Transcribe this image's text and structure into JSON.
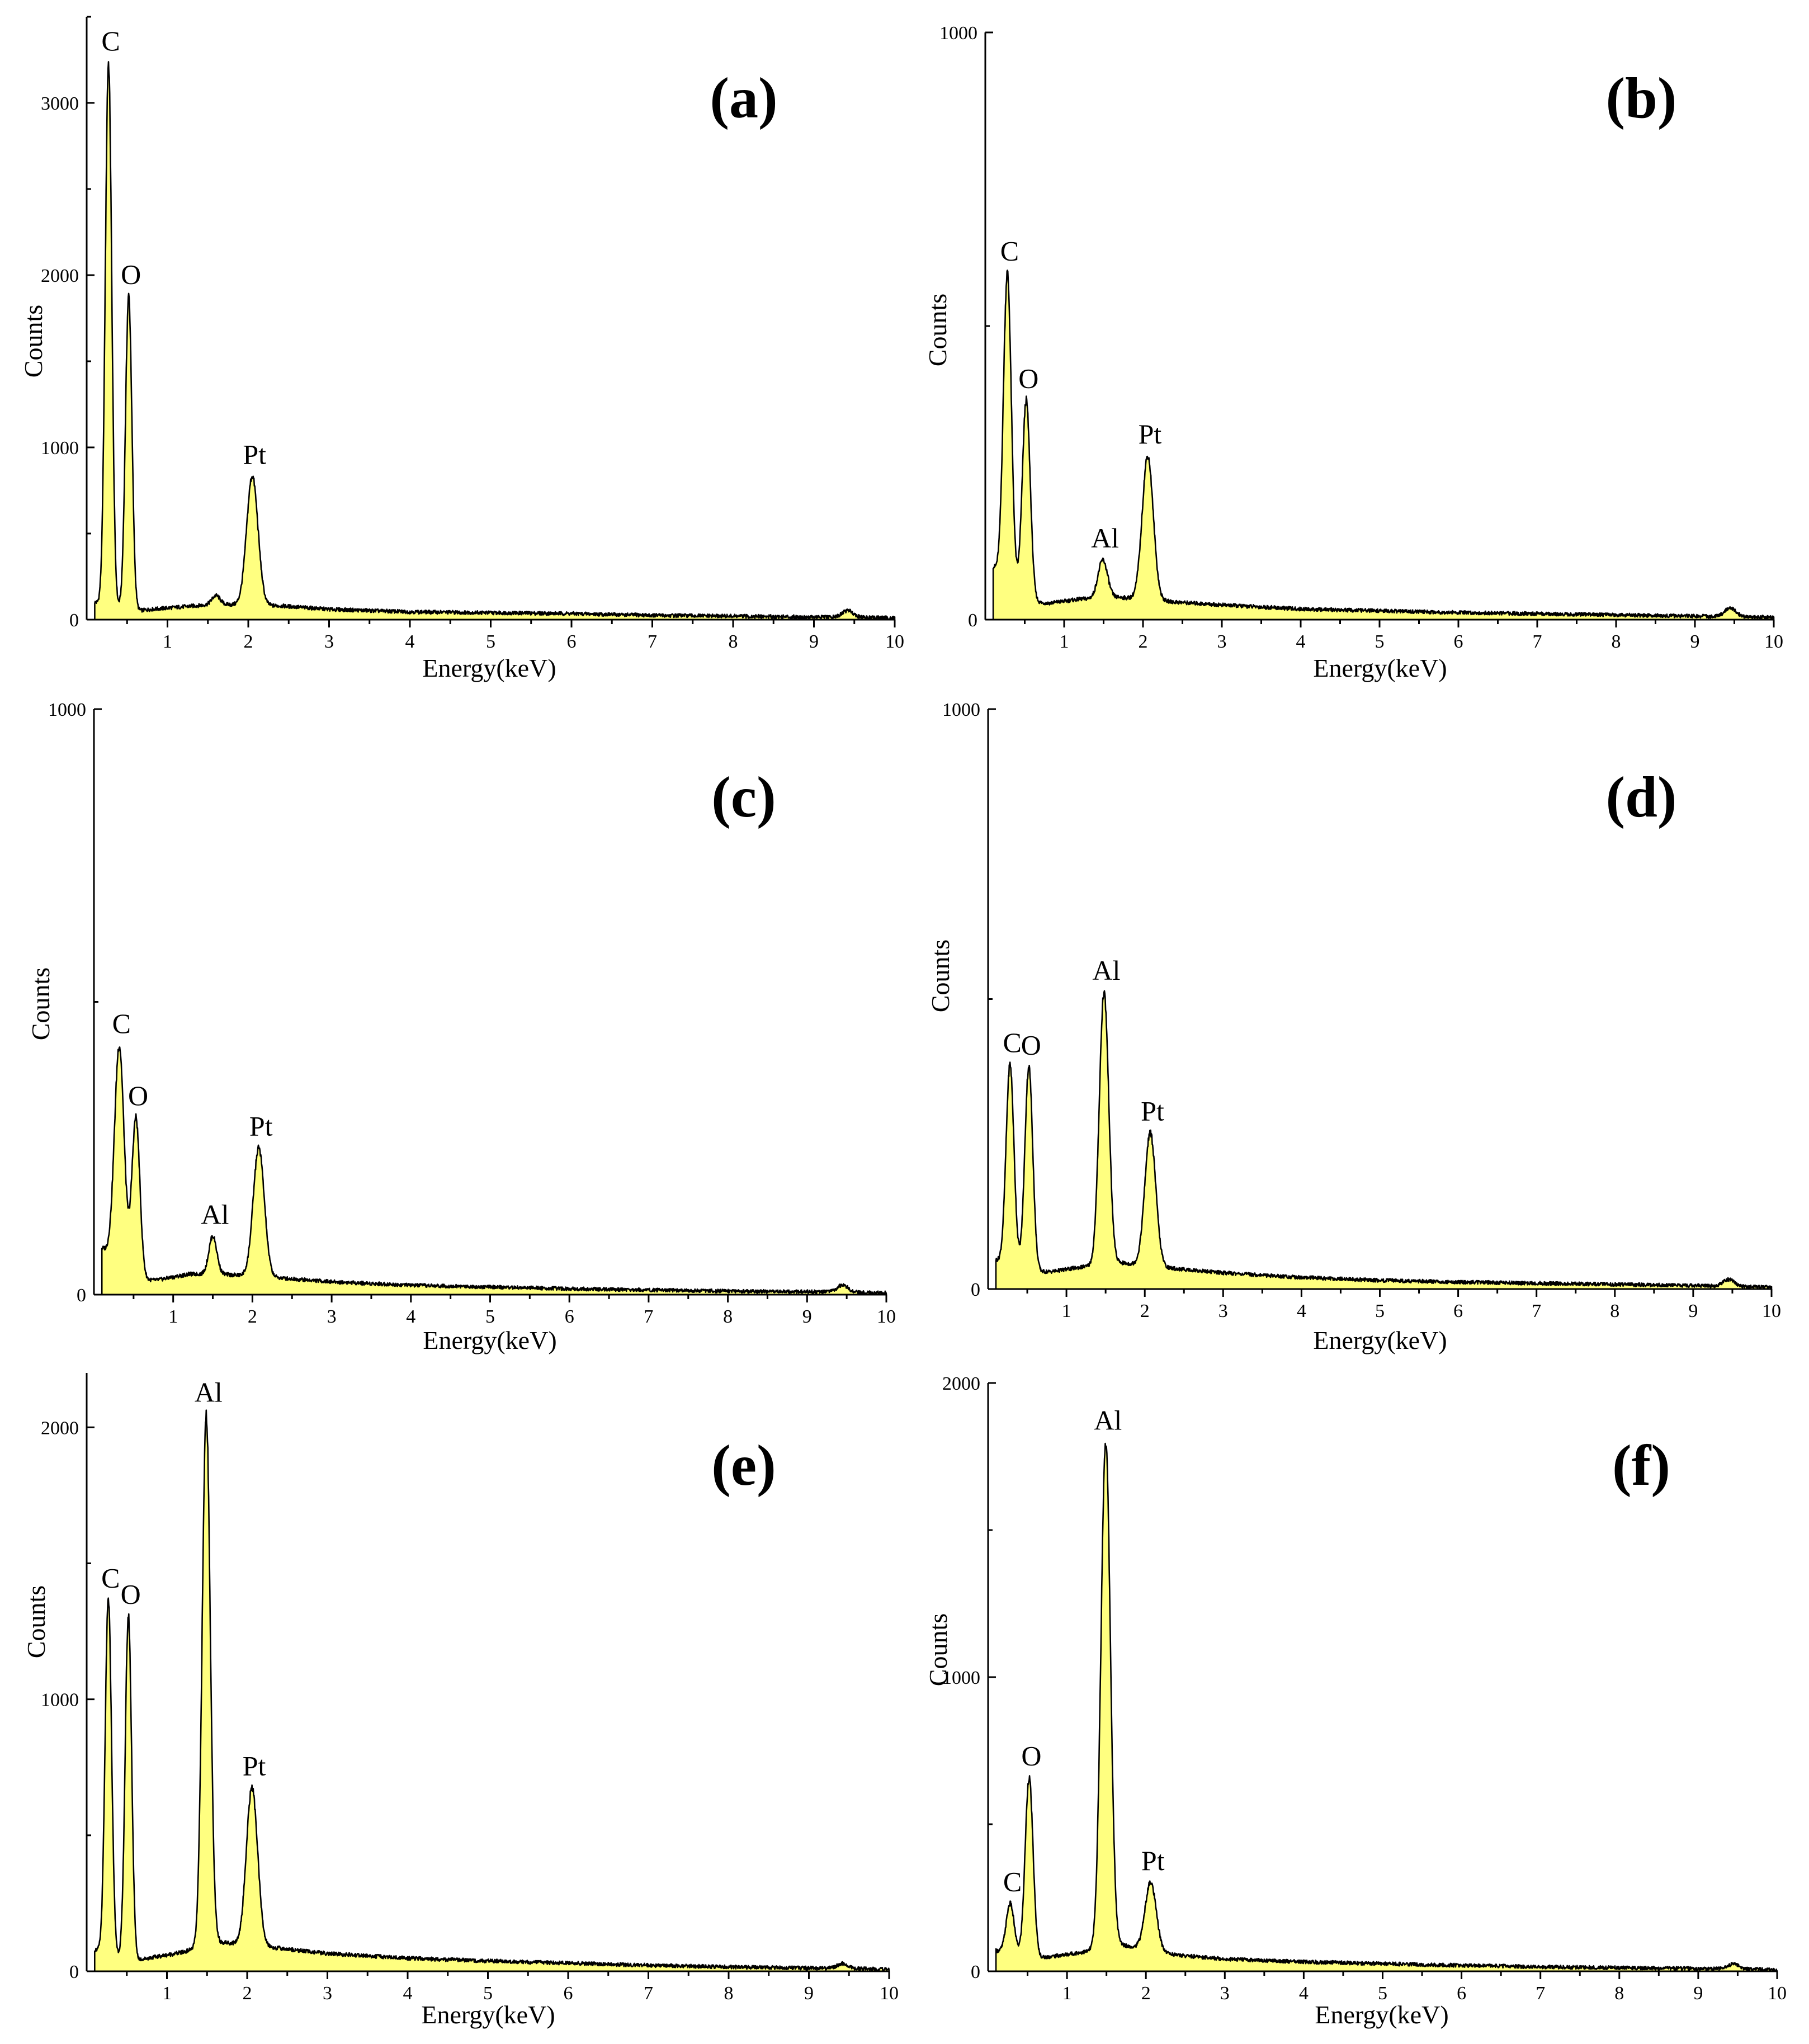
{
  "chart_data": [
    {
      "type": "area",
      "panel_label": "(a)",
      "xlabel": "Energy(keV)",
      "ylabel": "Counts",
      "xlim": [
        0,
        10
      ],
      "ylim": [
        0,
        3500
      ],
      "x_ticks": [
        "1",
        "2",
        "3",
        "4",
        "5",
        "6",
        "7",
        "8",
        "9",
        "10"
      ],
      "y_ticks": [
        0,
        1000,
        2000,
        3000
      ],
      "y_tick_labels": [
        "0",
        "1000",
        "2000",
        "3000"
      ],
      "fill_color": "#ffff80",
      "baseline": [
        [
          0.1,
          100
        ],
        [
          0.6,
          50
        ],
        [
          0.8,
          60
        ],
        [
          1.2,
          75
        ],
        [
          1.6,
          90
        ],
        [
          1.9,
          85
        ],
        [
          2.4,
          80
        ],
        [
          3,
          60
        ],
        [
          4,
          45
        ],
        [
          5,
          40
        ],
        [
          6,
          35
        ],
        [
          7,
          25
        ],
        [
          8,
          20
        ],
        [
          9,
          15
        ],
        [
          10,
          10
        ]
      ],
      "peaks": [
        {
          "label": "C",
          "x": 0.27,
          "y": 3150,
          "width": 0.04
        },
        {
          "label": "O",
          "x": 0.52,
          "y": 1820,
          "width": 0.04
        },
        {
          "label": "",
          "x": 1.6,
          "y": 50,
          "width": 0.05
        },
        {
          "label": "Pt",
          "x": 2.05,
          "y": 750,
          "width": 0.07
        },
        {
          "label": "",
          "x": 9.42,
          "y": 40,
          "width": 0.07
        }
      ]
    },
    {
      "type": "area",
      "panel_label": "(b)",
      "xlabel": "Energy(keV)",
      "ylabel": "Counts",
      "xlim": [
        0,
        10
      ],
      "ylim": [
        0,
        1000
      ],
      "x_ticks": [
        "1",
        "2",
        "3",
        "4",
        "5",
        "6",
        "7",
        "8",
        "9",
        "10"
      ],
      "y_ticks": [
        0,
        1000
      ],
      "y_tick_labels": [
        "0",
        "1000"
      ],
      "fill_color": "#ffff80",
      "baseline": [
        [
          0.1,
          90
        ],
        [
          0.55,
          30
        ],
        [
          0.8,
          28
        ],
        [
          1.2,
          35
        ],
        [
          1.7,
          38
        ],
        [
          2.4,
          30
        ],
        [
          3,
          25
        ],
        [
          4,
          18
        ],
        [
          5,
          15
        ],
        [
          6,
          12
        ],
        [
          7,
          10
        ],
        [
          8,
          8
        ],
        [
          9,
          6
        ],
        [
          10,
          4
        ]
      ],
      "peaks": [
        {
          "label": "C",
          "x": 0.28,
          "y": 525,
          "width": 0.05
        },
        {
          "label": "O",
          "x": 0.52,
          "y": 340,
          "width": 0.05
        },
        {
          "label": "Al",
          "x": 1.49,
          "y": 65,
          "width": 0.06
        },
        {
          "label": "Pt",
          "x": 2.06,
          "y": 245,
          "width": 0.07
        },
        {
          "label": "",
          "x": 9.45,
          "y": 15,
          "width": 0.07
        }
      ]
    },
    {
      "type": "area",
      "panel_label": "(c)",
      "xlabel": "Energy(keV)",
      "ylabel": "Counts",
      "xlim": [
        0,
        10
      ],
      "ylim": [
        0,
        1000
      ],
      "x_ticks": [
        "1",
        "2",
        "3",
        "4",
        "5",
        "6",
        "7",
        "8",
        "9",
        "10"
      ],
      "y_ticks": [
        0,
        1000
      ],
      "y_tick_labels": [
        "0",
        "1000"
      ],
      "fill_color": "#ffff80",
      "baseline": [
        [
          0.1,
          80
        ],
        [
          0.6,
          25
        ],
        [
          0.8,
          25
        ],
        [
          1.2,
          35
        ],
        [
          1.6,
          35
        ],
        [
          2.4,
          28
        ],
        [
          3,
          22
        ],
        [
          4,
          16
        ],
        [
          5,
          13
        ],
        [
          6,
          10
        ],
        [
          7,
          8
        ],
        [
          8,
          6
        ],
        [
          9,
          5
        ],
        [
          10,
          3
        ]
      ],
      "peaks": [
        {
          "label": "C",
          "x": 0.32,
          "y": 370,
          "width": 0.06
        },
        {
          "label": "O",
          "x": 0.53,
          "y": 270,
          "width": 0.05
        },
        {
          "label": "Al",
          "x": 1.5,
          "y": 65,
          "width": 0.05
        },
        {
          "label": "Pt",
          "x": 2.08,
          "y": 220,
          "width": 0.07
        },
        {
          "label": "",
          "x": 9.45,
          "y": 12,
          "width": 0.07
        }
      ]
    },
    {
      "type": "area",
      "panel_label": "(d)",
      "xlabel": "Energy(keV)",
      "ylabel": "Counts",
      "xlim": [
        0,
        10
      ],
      "ylim": [
        0,
        1000
      ],
      "x_ticks": [
        "1",
        "2",
        "3",
        "4",
        "5",
        "6",
        "7",
        "8",
        "9",
        "10"
      ],
      "y_ticks": [
        0,
        1000
      ],
      "y_tick_labels": [
        "0",
        "1000"
      ],
      "fill_color": "#ffff80",
      "baseline": [
        [
          0.1,
          50
        ],
        [
          0.6,
          30
        ],
        [
          0.8,
          30
        ],
        [
          1.2,
          38
        ],
        [
          1.7,
          45
        ],
        [
          2.4,
          35
        ],
        [
          3,
          28
        ],
        [
          4,
          20
        ],
        [
          5,
          15
        ],
        [
          6,
          12
        ],
        [
          7,
          10
        ],
        [
          8,
          8
        ],
        [
          9,
          6
        ],
        [
          10,
          3
        ]
      ],
      "peaks": [
        {
          "label": "C",
          "x": 0.28,
          "y": 345,
          "width": 0.05
        },
        {
          "label": "O",
          "x": 0.52,
          "y": 350,
          "width": 0.05
        },
        {
          "label": "Al",
          "x": 1.48,
          "y": 470,
          "width": 0.06
        },
        {
          "label": "Pt",
          "x": 2.07,
          "y": 230,
          "width": 0.07
        },
        {
          "label": "",
          "x": 9.45,
          "y": 12,
          "width": 0.07
        }
      ]
    },
    {
      "type": "area",
      "panel_label": "(e)",
      "xlabel": "Energy(keV)",
      "ylabel": "Counts",
      "xlim": [
        0,
        10
      ],
      "ylim": [
        0,
        2200
      ],
      "x_ticks": [
        "1",
        "2",
        "3",
        "4",
        "5",
        "6",
        "7",
        "8",
        "9",
        "10"
      ],
      "y_ticks": [
        0,
        1000,
        2000
      ],
      "y_tick_labels": [
        "0",
        "1000",
        "2000"
      ],
      "fill_color": "#ffff80",
      "baseline": [
        [
          0.1,
          80
        ],
        [
          0.6,
          40
        ],
        [
          0.8,
          50
        ],
        [
          1.2,
          70
        ],
        [
          1.6,
          110
        ],
        [
          1.9,
          100
        ],
        [
          2.4,
          85
        ],
        [
          3,
          65
        ],
        [
          4,
          48
        ],
        [
          5,
          38
        ],
        [
          6,
          30
        ],
        [
          7,
          22
        ],
        [
          8,
          16
        ],
        [
          9,
          12
        ],
        [
          10,
          8
        ]
      ],
      "peaks": [
        {
          "label": "C",
          "x": 0.27,
          "y": 1300,
          "width": 0.04
        },
        {
          "label": "O",
          "x": 0.52,
          "y": 1260,
          "width": 0.04
        },
        {
          "label": "Al",
          "x": 1.49,
          "y": 1950,
          "width": 0.05
        },
        {
          "label": "Pt",
          "x": 2.06,
          "y": 580,
          "width": 0.07
        },
        {
          "label": "",
          "x": 9.42,
          "y": 18,
          "width": 0.07
        }
      ]
    },
    {
      "type": "area",
      "panel_label": "(f)",
      "xlabel": "Energy(keV)",
      "ylabel": "Counts",
      "xlim": [
        0,
        10
      ],
      "ylim": [
        0,
        2000
      ],
      "x_ticks": [
        "1",
        "2",
        "3",
        "4",
        "5",
        "6",
        "7",
        "8",
        "9",
        "10"
      ],
      "y_ticks": [
        0,
        1000,
        2000
      ],
      "y_tick_labels": [
        "0",
        "1000",
        "2000"
      ],
      "fill_color": "#ffff80",
      "baseline": [
        [
          0.1,
          70
        ],
        [
          0.6,
          45
        ],
        [
          0.8,
          50
        ],
        [
          1.2,
          65
        ],
        [
          1.7,
          90
        ],
        [
          2.4,
          55
        ],
        [
          3,
          42
        ],
        [
          4,
          32
        ],
        [
          5,
          26
        ],
        [
          6,
          20
        ],
        [
          7,
          15
        ],
        [
          8,
          12
        ],
        [
          9,
          9
        ],
        [
          10,
          6
        ]
      ],
      "peaks": [
        {
          "label": "C",
          "x": 0.28,
          "y": 170,
          "width": 0.05
        },
        {
          "label": "O",
          "x": 0.52,
          "y": 610,
          "width": 0.05
        },
        {
          "label": "Al",
          "x": 1.49,
          "y": 1720,
          "width": 0.06
        },
        {
          "label": "Pt",
          "x": 2.06,
          "y": 230,
          "width": 0.07
        },
        {
          "label": "",
          "x": 9.45,
          "y": 18,
          "width": 0.07
        }
      ]
    }
  ]
}
